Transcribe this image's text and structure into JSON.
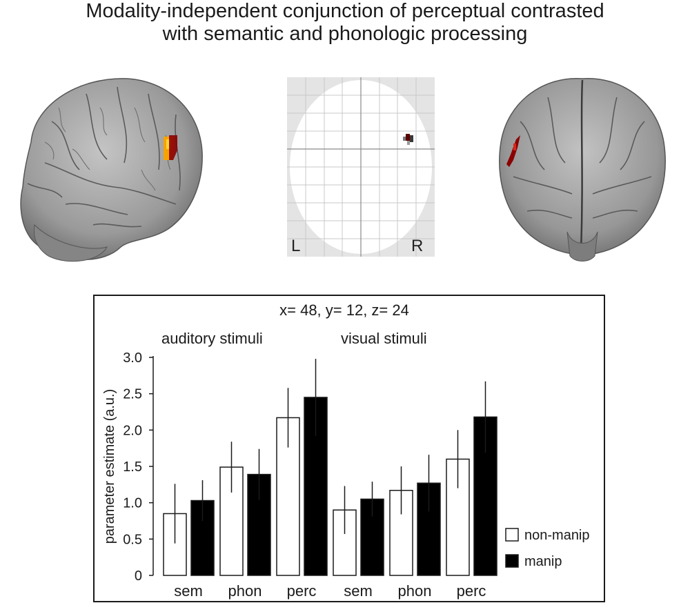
{
  "title_lines": [
    "Modality-independent conjunction of perceptual contrasted",
    "with semantic and phonologic processing"
  ],
  "glass_brain": {
    "left_label": "L",
    "right_label": "R"
  },
  "colors": {
    "activation_hot": "#f5a300",
    "activation_dark": "#8b0000",
    "brain_gray": "#9a9a9a",
    "bar_manip": "#000000",
    "bar_nonmanip": "#ffffff"
  },
  "chart_data": {
    "type": "bar",
    "title": "x= 48, y= 12, z= 24",
    "group_labels": [
      "auditory stimuli",
      "visual stimuli"
    ],
    "categories": [
      "sem",
      "phon",
      "perc",
      "sem",
      "phon",
      "perc"
    ],
    "ylabel": "parameter estimate (a.u.)",
    "ylim": [
      0,
      3.0
    ],
    "yticks": [
      0,
      0.5,
      1.0,
      1.5,
      2.0,
      2.5,
      3.0
    ],
    "ytick_labels": [
      "0",
      "0.5",
      "1.0",
      "1.5",
      "2.0",
      "2.5",
      "3.0"
    ],
    "legend": {
      "position": "right",
      "entries": [
        "non-manip",
        "manip"
      ]
    },
    "series": [
      {
        "name": "non-manip",
        "values": [
          0.85,
          1.49,
          2.17,
          0.9,
          1.17,
          1.6
        ],
        "errors": [
          0.41,
          0.35,
          0.41,
          0.33,
          0.33,
          0.4
        ]
      },
      {
        "name": "manip",
        "values": [
          1.03,
          1.39,
          2.45,
          1.05,
          1.27,
          2.18
        ],
        "errors": [
          0.28,
          0.35,
          0.53,
          0.24,
          0.39,
          0.49
        ]
      }
    ]
  }
}
